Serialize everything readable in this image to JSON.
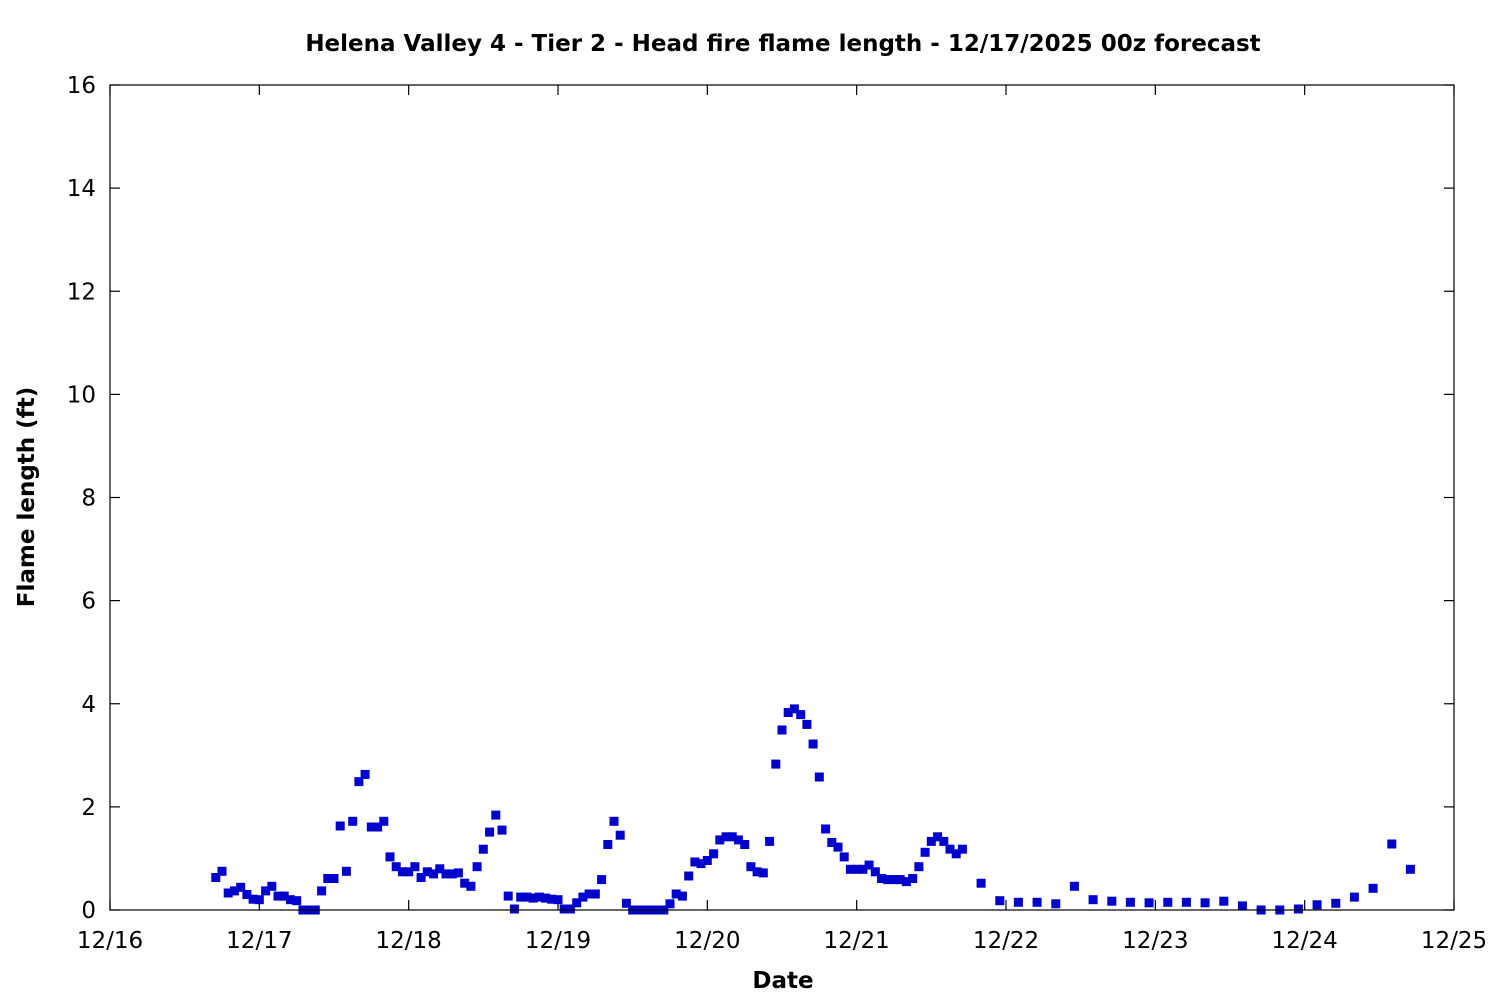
{
  "chart_data": {
    "type": "scatter",
    "title": "Helena Valley 4 - Tier 2 - Head fire flame length - 12/17/2025 00z forecast",
    "xlabel": "Date",
    "ylabel": "Flame length (ft)",
    "xlim": [
      "12/16",
      "12/25"
    ],
    "ylim": [
      0,
      16
    ],
    "x_ticks": [
      "12/16",
      "12/17",
      "12/18",
      "12/19",
      "12/20",
      "12/21",
      "12/22",
      "12/23",
      "12/24",
      "12/25"
    ],
    "y_ticks": [
      "0",
      "2",
      "4",
      "6",
      "8",
      "10",
      "12",
      "14",
      "16"
    ],
    "grid": false,
    "legend": false,
    "marker_color": "#0000cc",
    "series": [
      {
        "points": [
          [
            "12/16 17:00",
            0.63
          ],
          [
            "12/16 18:00",
            0.75
          ],
          [
            "12/16 19:00",
            0.33
          ],
          [
            "12/16 20:00",
            0.37
          ],
          [
            "12/16 21:00",
            0.44
          ],
          [
            "12/16 22:00",
            0.3
          ],
          [
            "12/16 23:00",
            0.21
          ],
          [
            "12/17 00:00",
            0.2
          ],
          [
            "12/17 01:00",
            0.37
          ],
          [
            "12/17 02:00",
            0.46
          ],
          [
            "12/17 03:00",
            0.27
          ],
          [
            "12/17 04:00",
            0.27
          ],
          [
            "12/17 05:00",
            0.2
          ],
          [
            "12/17 06:00",
            0.18
          ],
          [
            "12/17 07:00",
            0.0
          ],
          [
            "12/17 08:00",
            0.0
          ],
          [
            "12/17 09:00",
            0.0
          ],
          [
            "12/17 10:00",
            0.37
          ],
          [
            "12/17 11:00",
            0.61
          ],
          [
            "12/17 12:00",
            0.61
          ],
          [
            "12/17 13:00",
            1.63
          ],
          [
            "12/17 14:00",
            0.75
          ],
          [
            "12/17 15:00",
            1.72
          ],
          [
            "12/17 16:00",
            2.49
          ],
          [
            "12/17 17:00",
            2.63
          ],
          [
            "12/17 18:00",
            1.61
          ],
          [
            "12/17 19:00",
            1.61
          ],
          [
            "12/17 20:00",
            1.72
          ],
          [
            "12/17 21:00",
            1.03
          ],
          [
            "12/17 22:00",
            0.84
          ],
          [
            "12/17 23:00",
            0.74
          ],
          [
            "12/18 00:00",
            0.74
          ],
          [
            "12/18 01:00",
            0.84
          ],
          [
            "12/18 02:00",
            0.63
          ],
          [
            "12/18 03:00",
            0.74
          ],
          [
            "12/18 04:00",
            0.7
          ],
          [
            "12/18 05:00",
            0.8
          ],
          [
            "12/18 06:00",
            0.7
          ],
          [
            "12/18 07:00",
            0.7
          ],
          [
            "12/18 08:00",
            0.72
          ],
          [
            "12/18 09:00",
            0.52
          ],
          [
            "12/18 10:00",
            0.46
          ],
          [
            "12/18 11:00",
            0.84
          ],
          [
            "12/18 12:00",
            1.18
          ],
          [
            "12/18 13:00",
            1.51
          ],
          [
            "12/18 14:00",
            1.84
          ],
          [
            "12/18 15:00",
            1.55
          ],
          [
            "12/18 16:00",
            0.27
          ],
          [
            "12/18 17:00",
            0.02
          ],
          [
            "12/18 18:00",
            0.25
          ],
          [
            "12/18 19:00",
            0.25
          ],
          [
            "12/18 20:00",
            0.23
          ],
          [
            "12/18 21:00",
            0.25
          ],
          [
            "12/18 22:00",
            0.23
          ],
          [
            "12/18 23:00",
            0.21
          ],
          [
            "12/19 00:00",
            0.2
          ],
          [
            "12/19 01:00",
            0.02
          ],
          [
            "12/19 02:00",
            0.02
          ],
          [
            "12/19 03:00",
            0.14
          ],
          [
            "12/19 04:00",
            0.25
          ],
          [
            "12/19 05:00",
            0.31
          ],
          [
            "12/19 06:00",
            0.31
          ],
          [
            "12/19 07:00",
            0.59
          ],
          [
            "12/19 08:00",
            1.27
          ],
          [
            "12/19 09:00",
            1.72
          ],
          [
            "12/19 10:00",
            1.45
          ],
          [
            "12/19 11:00",
            0.13
          ],
          [
            "12/19 12:00",
            0.0
          ],
          [
            "12/19 13:00",
            0.0
          ],
          [
            "12/19 14:00",
            0.0
          ],
          [
            "12/19 15:00",
            0.0
          ],
          [
            "12/19 16:00",
            0.0
          ],
          [
            "12/19 17:00",
            0.0
          ],
          [
            "12/19 18:00",
            0.12
          ],
          [
            "12/19 19:00",
            0.31
          ],
          [
            "12/19 20:00",
            0.27
          ],
          [
            "12/19 21:00",
            0.66
          ],
          [
            "12/19 22:00",
            0.93
          ],
          [
            "12/19 23:00",
            0.9
          ],
          [
            "12/20 00:00",
            0.96
          ],
          [
            "12/20 01:00",
            1.09
          ],
          [
            "12/20 02:00",
            1.36
          ],
          [
            "12/20 03:00",
            1.42
          ],
          [
            "12/20 04:00",
            1.42
          ],
          [
            "12/20 05:00",
            1.36
          ],
          [
            "12/20 06:00",
            1.27
          ],
          [
            "12/20 07:00",
            0.84
          ],
          [
            "12/20 08:00",
            0.74
          ],
          [
            "12/20 09:00",
            0.72
          ],
          [
            "12/20 10:00",
            1.33
          ],
          [
            "12/20 11:00",
            2.83
          ],
          [
            "12/20 12:00",
            3.49
          ],
          [
            "12/20 13:00",
            3.83
          ],
          [
            "12/20 14:00",
            3.9
          ],
          [
            "12/20 15:00",
            3.79
          ],
          [
            "12/20 16:00",
            3.6
          ],
          [
            "12/20 17:00",
            3.22
          ],
          [
            "12/20 18:00",
            2.58
          ],
          [
            "12/20 19:00",
            1.57
          ],
          [
            "12/20 20:00",
            1.31
          ],
          [
            "12/20 21:00",
            1.22
          ],
          [
            "12/20 22:00",
            1.03
          ],
          [
            "12/20 23:00",
            0.79
          ],
          [
            "12/21 00:00",
            0.79
          ],
          [
            "12/21 01:00",
            0.79
          ],
          [
            "12/21 02:00",
            0.87
          ],
          [
            "12/21 03:00",
            0.74
          ],
          [
            "12/21 04:00",
            0.61
          ],
          [
            "12/21 05:00",
            0.59
          ],
          [
            "12/21 06:00",
            0.59
          ],
          [
            "12/21 07:00",
            0.59
          ],
          [
            "12/21 08:00",
            0.55
          ],
          [
            "12/21 09:00",
            0.61
          ],
          [
            "12/21 10:00",
            0.84
          ],
          [
            "12/21 11:00",
            1.12
          ],
          [
            "12/21 12:00",
            1.33
          ],
          [
            "12/21 13:00",
            1.42
          ],
          [
            "12/21 14:00",
            1.33
          ],
          [
            "12/21 15:00",
            1.18
          ],
          [
            "12/21 16:00",
            1.09
          ],
          [
            "12/21 17:00",
            1.18
          ],
          [
            "12/21 20:00",
            0.52
          ],
          [
            "12/21 23:00",
            0.18
          ],
          [
            "12/22 02:00",
            0.15
          ],
          [
            "12/22 05:00",
            0.15
          ],
          [
            "12/22 08:00",
            0.12
          ],
          [
            "12/22 11:00",
            0.46
          ],
          [
            "12/22 14:00",
            0.2
          ],
          [
            "12/22 17:00",
            0.17
          ],
          [
            "12/22 20:00",
            0.15
          ],
          [
            "12/22 23:00",
            0.14
          ],
          [
            "12/23 02:00",
            0.15
          ],
          [
            "12/23 05:00",
            0.15
          ],
          [
            "12/23 08:00",
            0.14
          ],
          [
            "12/23 11:00",
            0.17
          ],
          [
            "12/23 14:00",
            0.08
          ],
          [
            "12/23 17:00",
            0.0
          ],
          [
            "12/23 20:00",
            0.0
          ],
          [
            "12/23 23:00",
            0.02
          ],
          [
            "12/24 02:00",
            0.1
          ],
          [
            "12/24 05:00",
            0.13
          ],
          [
            "12/24 08:00",
            0.25
          ],
          [
            "12/24 11:00",
            0.42
          ],
          [
            "12/24 14:00",
            1.28
          ],
          [
            "12/24 17:00",
            0.79
          ]
        ]
      }
    ]
  }
}
